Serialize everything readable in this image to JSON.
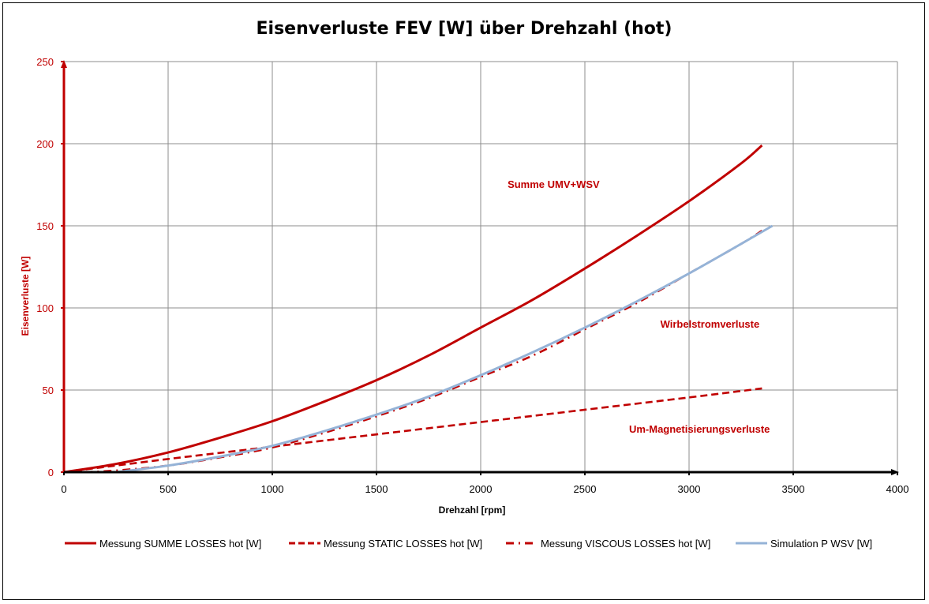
{
  "chart_data": {
    "type": "line",
    "title": "Eisenverluste FEV [W] über Drehzahl (hot)",
    "xlabel": "Drehzahl [rpm]",
    "ylabel": "Eisenverluste [W]",
    "xlim": [
      0,
      4000
    ],
    "ylim": [
      0,
      250
    ],
    "x_ticks": [
      0,
      500,
      1000,
      1500,
      2000,
      2500,
      3000,
      3500,
      4000
    ],
    "y_ticks": [
      0,
      50,
      100,
      150,
      200,
      250
    ],
    "x_tick_labels": [
      "0",
      "500",
      "1000",
      "1500",
      "2000",
      "2500",
      "3000",
      "3500",
      "4000"
    ],
    "y_tick_labels": [
      "0",
      "50",
      "100",
      "150",
      "200",
      "250"
    ],
    "grid": true,
    "legend_position": "bottom",
    "series": [
      {
        "name": "Messung SUMME LOSSES hot [W]",
        "color": "#c00000",
        "style": "solid",
        "x": [
          0,
          250,
          500,
          750,
          1000,
          1250,
          1500,
          1750,
          2000,
          2250,
          2500,
          2750,
          3000,
          3250,
          3350
        ],
        "y": [
          0,
          5,
          12,
          21,
          31,
          43,
          56,
          71,
          88,
          105,
          124,
          144,
          165,
          188,
          199
        ]
      },
      {
        "name": "Messung STATIC LOSSES hot [W]",
        "color": "#c00000",
        "style": "dashed",
        "x": [
          0,
          500,
          1000,
          1500,
          2000,
          2500,
          3000,
          3350
        ],
        "y": [
          0,
          8,
          15.5,
          23,
          30.5,
          38,
          45.5,
          51
        ]
      },
      {
        "name": "Messung VISCOUS LOSSES hot [W]",
        "color": "#c00000",
        "style": "dash-dot",
        "x": [
          100,
          250,
          500,
          750,
          1000,
          1250,
          1500,
          1750,
          2000,
          2250,
          2500,
          2750,
          3000,
          3250,
          3350
        ],
        "y": [
          0,
          1,
          4,
          9,
          15,
          24,
          34,
          45,
          58,
          71,
          87,
          103,
          121,
          139,
          147
        ]
      },
      {
        "name": "Simulation P WSV [W]",
        "color": "#95b3d7",
        "style": "solid",
        "x": [
          250,
          500,
          750,
          1000,
          1250,
          1500,
          1750,
          2000,
          2250,
          2500,
          2750,
          3000,
          3250,
          3400
        ],
        "y": [
          0,
          4,
          9.5,
          16,
          25,
          35,
          46,
          59,
          73,
          88,
          104,
          121,
          139,
          150
        ]
      }
    ],
    "annotations": [
      {
        "text": "Summe UMV+WSV",
        "x": 2350,
        "y": 173
      },
      {
        "text": "Wirbelstromverluste",
        "x": 3100,
        "y": 88
      },
      {
        "text": "Um-Magnetisierungsverluste",
        "x": 3050,
        "y": 24
      }
    ]
  }
}
